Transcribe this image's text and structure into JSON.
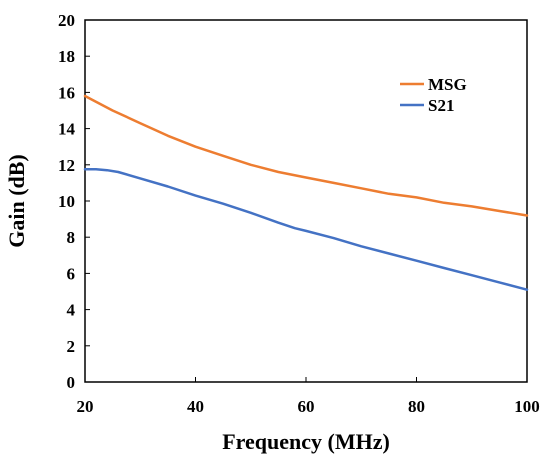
{
  "chart_data": {
    "type": "line",
    "title": "",
    "xlabel": "Frequency (MHz)",
    "ylabel": "Gain (dB)",
    "xlim": [
      20,
      100
    ],
    "ylim": [
      0,
      20
    ],
    "xticks": [
      20,
      40,
      60,
      80,
      100
    ],
    "yticks": [
      0,
      2,
      4,
      6,
      8,
      10,
      12,
      14,
      16,
      18,
      20
    ],
    "grid": false,
    "legend_position": "top-right",
    "series": [
      {
        "name": "MSG",
        "color": "#ED7D31",
        "x": [
          20,
          25,
          30,
          35,
          40,
          45,
          50,
          55,
          60,
          65,
          70,
          75,
          80,
          85,
          90,
          95,
          100
        ],
        "y": [
          15.8,
          15.0,
          14.3,
          13.6,
          13.0,
          12.5,
          12.0,
          11.6,
          11.3,
          11.0,
          10.7,
          10.4,
          10.2,
          9.9,
          9.7,
          9.45,
          9.2
        ]
      },
      {
        "name": "S21",
        "color": "#4472C4",
        "x": [
          20,
          22,
          24,
          26,
          30,
          35,
          40,
          45,
          50,
          55,
          58,
          60,
          65,
          70,
          75,
          80,
          85,
          90,
          95,
          100
        ],
        "y": [
          11.75,
          11.75,
          11.7,
          11.6,
          11.25,
          10.8,
          10.3,
          9.85,
          9.35,
          8.8,
          8.5,
          8.35,
          7.95,
          7.5,
          7.1,
          6.7,
          6.3,
          5.9,
          5.5,
          5.1
        ]
      }
    ]
  }
}
